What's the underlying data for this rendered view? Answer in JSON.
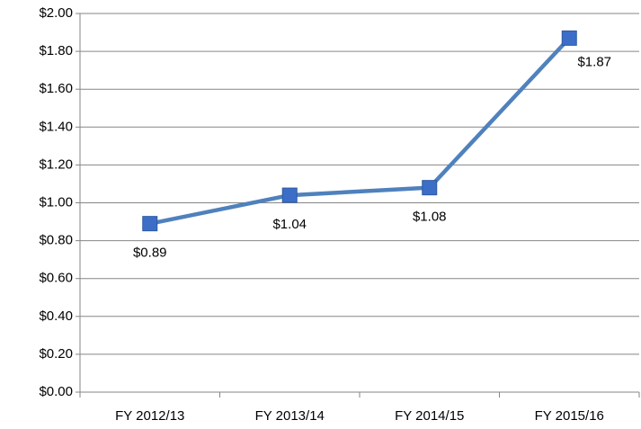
{
  "chart_data": {
    "type": "line",
    "categories": [
      "FY 2012/13",
      "FY 2013/14",
      "FY 2014/15",
      "FY 2015/16"
    ],
    "series": [
      {
        "color": "#4f81bd",
        "marker_color": "#3c6ec8",
        "values": [
          0.89,
          1.04,
          1.08,
          1.87
        ],
        "value_labels": [
          "$0.89",
          "$1.04",
          "$1.08",
          "$1.87"
        ]
      }
    ],
    "ylim": [
      0,
      2
    ],
    "yticks": [
      {
        "value": 0,
        "label": "$0.00"
      },
      {
        "value": 0.2,
        "label": "$0.20"
      },
      {
        "value": 0.4,
        "label": "$0.40"
      },
      {
        "value": 0.6,
        "label": "$0.60"
      },
      {
        "value": 0.8,
        "label": "$0.80"
      },
      {
        "value": 1,
        "label": "$1.00"
      },
      {
        "value": 1.2,
        "label": "$1.20"
      },
      {
        "value": 1.4,
        "label": "$1.40"
      },
      {
        "value": 1.6,
        "label": "$1.60"
      },
      {
        "value": 1.8,
        "label": "$1.80"
      },
      {
        "value": 2,
        "label": "$2.00"
      }
    ],
    "grid": true
  }
}
